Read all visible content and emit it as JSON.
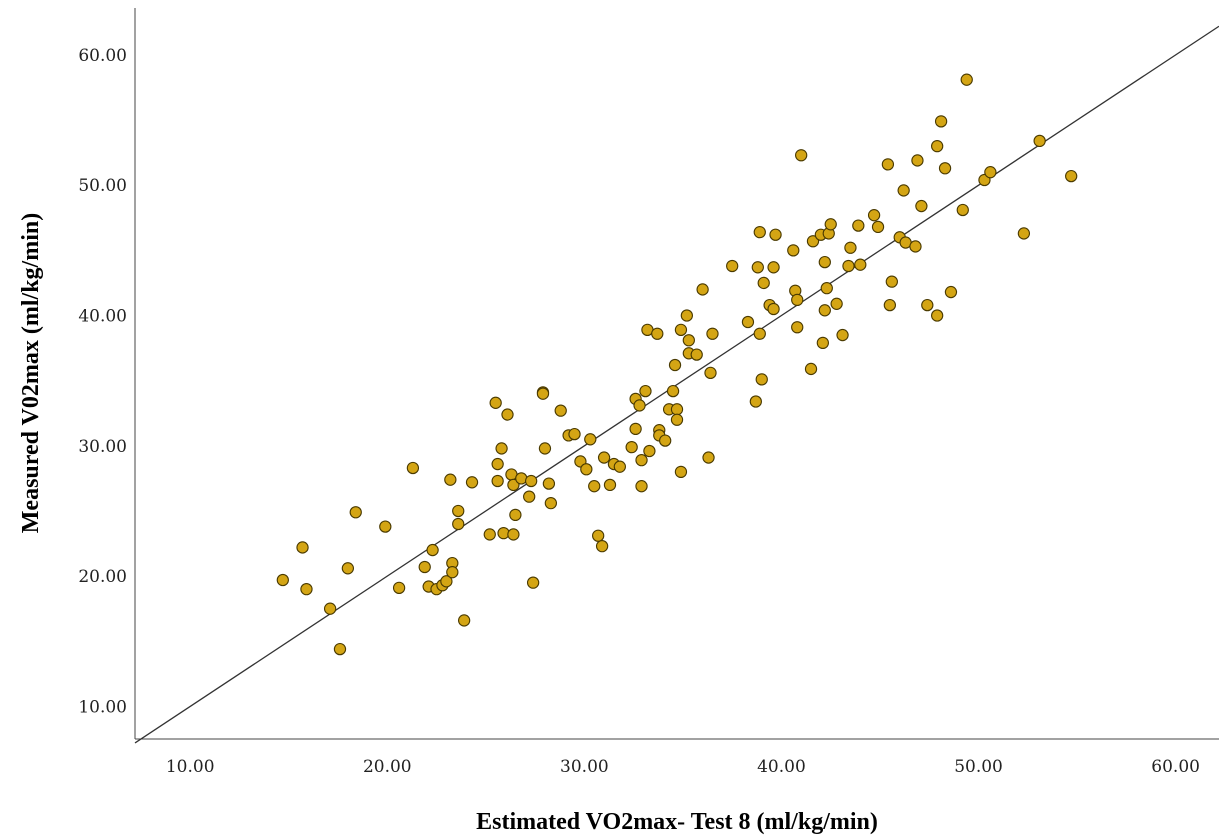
{
  "chart_data": {
    "type": "scatter",
    "xlabel": "Estimated VO2max- Test 8 (ml/kg/min)",
    "ylabel": "Measured V02max (ml/kg/min)",
    "xlim": [
      7.2,
      62.2
    ],
    "ylim": [
      7.5,
      63.6
    ],
    "xticks": [
      "10.00",
      "20.00",
      "30.00",
      "40.00",
      "50.00",
      "60.00"
    ],
    "yticks": [
      "10.00",
      "20.00",
      "30.00",
      "40.00",
      "50.00",
      "60.00"
    ],
    "grid": false,
    "reference_line": {
      "type": "identity",
      "from": [
        7.2,
        7.2
      ],
      "to": [
        62.2,
        62.2
      ]
    },
    "point_color": "#d4a514",
    "point_edge_color": "#4a3a00",
    "points": [
      [
        14.7,
        19.7
      ],
      [
        15.7,
        22.2
      ],
      [
        15.9,
        19.0
      ],
      [
        17.1,
        17.5
      ],
      [
        17.6,
        14.4
      ],
      [
        18.0,
        20.6
      ],
      [
        18.4,
        24.9
      ],
      [
        19.9,
        23.8
      ],
      [
        20.6,
        19.1
      ],
      [
        21.3,
        28.3
      ],
      [
        21.9,
        20.7
      ],
      [
        22.1,
        19.2
      ],
      [
        22.3,
        22.0
      ],
      [
        22.5,
        19.0
      ],
      [
        22.8,
        19.3
      ],
      [
        23.0,
        19.6
      ],
      [
        23.2,
        27.4
      ],
      [
        23.3,
        21.0
      ],
      [
        23.3,
        20.3
      ],
      [
        23.6,
        25.0
      ],
      [
        23.6,
        24.0
      ],
      [
        23.9,
        16.6
      ],
      [
        24.3,
        27.2
      ],
      [
        25.2,
        23.2
      ],
      [
        25.5,
        33.3
      ],
      [
        25.6,
        28.6
      ],
      [
        25.6,
        27.3
      ],
      [
        25.8,
        29.8
      ],
      [
        25.9,
        23.3
      ],
      [
        26.1,
        32.4
      ],
      [
        26.3,
        27.8
      ],
      [
        26.4,
        23.2
      ],
      [
        26.4,
        27.0
      ],
      [
        26.5,
        24.7
      ],
      [
        26.8,
        27.5
      ],
      [
        27.2,
        26.1
      ],
      [
        27.3,
        27.3
      ],
      [
        27.4,
        19.5
      ],
      [
        27.9,
        34.1
      ],
      [
        27.9,
        34.0
      ],
      [
        28.0,
        29.8
      ],
      [
        28.2,
        27.1
      ],
      [
        28.3,
        25.6
      ],
      [
        28.8,
        32.7
      ],
      [
        29.2,
        30.8
      ],
      [
        29.5,
        30.9
      ],
      [
        29.8,
        28.8
      ],
      [
        30.1,
        28.2
      ],
      [
        30.3,
        30.5
      ],
      [
        30.5,
        26.9
      ],
      [
        30.7,
        23.1
      ],
      [
        30.9,
        22.3
      ],
      [
        31.0,
        29.1
      ],
      [
        31.3,
        27.0
      ],
      [
        31.5,
        28.6
      ],
      [
        31.8,
        28.4
      ],
      [
        32.4,
        29.9
      ],
      [
        32.6,
        31.3
      ],
      [
        32.6,
        33.6
      ],
      [
        32.8,
        33.1
      ],
      [
        32.9,
        28.9
      ],
      [
        32.9,
        26.9
      ],
      [
        33.1,
        34.2
      ],
      [
        33.2,
        38.9
      ],
      [
        33.3,
        29.6
      ],
      [
        33.7,
        38.6
      ],
      [
        33.8,
        31.2
      ],
      [
        33.8,
        30.8
      ],
      [
        34.1,
        30.4
      ],
      [
        34.3,
        32.8
      ],
      [
        34.5,
        34.2
      ],
      [
        34.6,
        36.2
      ],
      [
        34.7,
        32.8
      ],
      [
        34.7,
        32.0
      ],
      [
        34.9,
        38.9
      ],
      [
        34.9,
        28.0
      ],
      [
        35.2,
        40.0
      ],
      [
        35.3,
        38.1
      ],
      [
        35.3,
        37.1
      ],
      [
        35.7,
        37.0
      ],
      [
        36.0,
        42.0
      ],
      [
        36.3,
        29.1
      ],
      [
        36.4,
        35.6
      ],
      [
        36.5,
        38.6
      ],
      [
        37.5,
        43.8
      ],
      [
        38.3,
        39.5
      ],
      [
        38.7,
        33.4
      ],
      [
        38.8,
        43.7
      ],
      [
        38.9,
        46.4
      ],
      [
        38.9,
        38.6
      ],
      [
        39.0,
        35.1
      ],
      [
        39.1,
        42.5
      ],
      [
        39.4,
        40.8
      ],
      [
        39.6,
        43.7
      ],
      [
        39.6,
        40.5
      ],
      [
        39.7,
        46.2
      ],
      [
        40.6,
        45.0
      ],
      [
        40.7,
        41.9
      ],
      [
        40.8,
        41.2
      ],
      [
        40.8,
        39.1
      ],
      [
        41.0,
        52.3
      ],
      [
        41.5,
        35.9
      ],
      [
        41.6,
        45.7
      ],
      [
        42.0,
        46.2
      ],
      [
        42.1,
        37.9
      ],
      [
        42.2,
        44.1
      ],
      [
        42.2,
        40.4
      ],
      [
        42.3,
        42.1
      ],
      [
        42.4,
        46.3
      ],
      [
        42.5,
        47.0
      ],
      [
        42.8,
        40.9
      ],
      [
        43.1,
        38.5
      ],
      [
        43.4,
        43.8
      ],
      [
        43.5,
        45.2
      ],
      [
        43.9,
        46.9
      ],
      [
        44.0,
        43.9
      ],
      [
        44.7,
        47.7
      ],
      [
        44.9,
        46.8
      ],
      [
        45.4,
        51.6
      ],
      [
        45.5,
        40.8
      ],
      [
        45.6,
        42.6
      ],
      [
        46.0,
        46.0
      ],
      [
        46.2,
        49.6
      ],
      [
        46.3,
        45.6
      ],
      [
        46.8,
        45.3
      ],
      [
        46.9,
        51.9
      ],
      [
        47.1,
        48.4
      ],
      [
        47.4,
        40.8
      ],
      [
        47.9,
        53.0
      ],
      [
        47.9,
        40.0
      ],
      [
        48.1,
        54.9
      ],
      [
        48.3,
        51.3
      ],
      [
        48.6,
        41.8
      ],
      [
        49.2,
        48.1
      ],
      [
        49.4,
        58.1
      ],
      [
        50.3,
        50.4
      ],
      [
        50.6,
        51.0
      ],
      [
        52.3,
        46.3
      ],
      [
        53.1,
        53.4
      ],
      [
        54.7,
        50.7
      ]
    ]
  }
}
